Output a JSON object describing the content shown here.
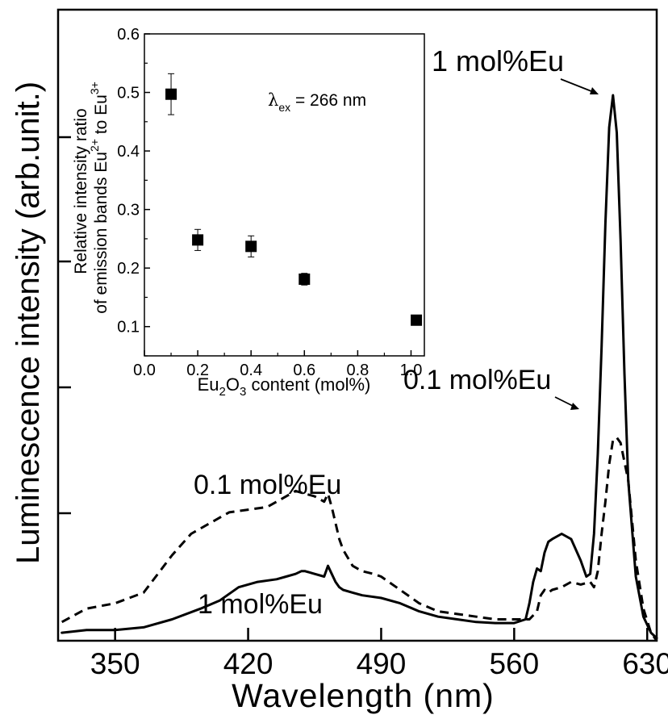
{
  "chart_data": [
    {
      "type": "line",
      "xlabel": "Wavelength (nm)",
      "ylabel": "Luminescence intensity (arb.unit.)",
      "xlim": [
        320,
        635
      ],
      "ylim": [
        0,
        1.18
      ],
      "xticks": [
        "350",
        "420",
        "490",
        "560",
        "630"
      ],
      "grid": false,
      "series": [
        {
          "name": "0.1 mol%Eu",
          "style": "dashed",
          "x": [
            322,
            335,
            350,
            365,
            380,
            390,
            400,
            410,
            420,
            430,
            440,
            445,
            450,
            455,
            460,
            462,
            464,
            466,
            468,
            470,
            475,
            480,
            486,
            490,
            500,
            510,
            520,
            530,
            540,
            550,
            560,
            568,
            572,
            574,
            576,
            578,
            580,
            585,
            590,
            595,
            600,
            602,
            604,
            606,
            608,
            610,
            612,
            614,
            616,
            620,
            624,
            628,
            632,
            635
          ],
          "y": [
            0.035,
            0.06,
            0.07,
            0.09,
            0.16,
            0.2,
            0.22,
            0.24,
            0.245,
            0.25,
            0.27,
            0.28,
            0.275,
            0.27,
            0.26,
            0.275,
            0.25,
            0.22,
            0.19,
            0.17,
            0.14,
            0.13,
            0.125,
            0.12,
            0.095,
            0.07,
            0.055,
            0.05,
            0.045,
            0.04,
            0.04,
            0.04,
            0.055,
            0.085,
            0.095,
            0.09,
            0.095,
            0.1,
            0.11,
            0.105,
            0.11,
            0.1,
            0.13,
            0.2,
            0.26,
            0.33,
            0.375,
            0.38,
            0.37,
            0.3,
            0.15,
            0.06,
            0.015,
            0.0
          ]
        },
        {
          "name": "1 mol%Eu",
          "style": "solid",
          "x": [
            322,
            335,
            350,
            365,
            380,
            395,
            405,
            415,
            425,
            435,
            440,
            445,
            448,
            450,
            455,
            460,
            462,
            464,
            466,
            468,
            470,
            475,
            480,
            490,
            500,
            510,
            520,
            530,
            540,
            550,
            560,
            566,
            568,
            570,
            572,
            574,
            576,
            578,
            580,
            585,
            590,
            595,
            598,
            600,
            602,
            604,
            606,
            608,
            610,
            612,
            614,
            616,
            618,
            620,
            624,
            628,
            632,
            635
          ],
          "y": [
            0.015,
            0.02,
            0.02,
            0.025,
            0.04,
            0.06,
            0.075,
            0.1,
            0.11,
            0.115,
            0.12,
            0.125,
            0.13,
            0.13,
            0.125,
            0.12,
            0.14,
            0.125,
            0.11,
            0.1,
            0.095,
            0.09,
            0.085,
            0.08,
            0.07,
            0.055,
            0.045,
            0.04,
            0.035,
            0.033,
            0.033,
            0.04,
            0.07,
            0.11,
            0.135,
            0.13,
            0.165,
            0.185,
            0.19,
            0.2,
            0.19,
            0.15,
            0.12,
            0.125,
            0.2,
            0.35,
            0.55,
            0.78,
            0.96,
            1.02,
            0.95,
            0.75,
            0.5,
            0.3,
            0.12,
            0.045,
            0.015,
            0.005
          ]
        }
      ],
      "annotations": [
        "1 mol%Eu",
        "0.1 mol%Eu",
        "0.1 mol%Eu",
        "1 mol%Eu"
      ]
    },
    {
      "type": "scatter",
      "xlabel_parts": [
        "Eu",
        "2",
        "O",
        "3",
        " content (mol%)"
      ],
      "ylabel_line1": "Relative intensity ratio",
      "ylabel_line2_parts": [
        "of emission bands Eu",
        "2+",
        " to Eu",
        "3+"
      ],
      "xlim": [
        0.0,
        1.05
      ],
      "ylim": [
        0.05,
        0.6
      ],
      "xticks": [
        "0.0",
        "0.2",
        "0.4",
        "0.6",
        "0.8",
        "1.0"
      ],
      "yticks": [
        "0.1",
        "0.2",
        "0.3",
        "0.4",
        "0.5",
        "0.6"
      ],
      "grid": false,
      "annotation_parts": [
        "λ",
        "ex",
        " = 266 nm"
      ],
      "points": [
        {
          "x": 0.1,
          "y": 0.497,
          "err": 0.035
        },
        {
          "x": 0.2,
          "y": 0.248,
          "err": 0.018
        },
        {
          "x": 0.4,
          "y": 0.237,
          "err": 0.018
        },
        {
          "x": 0.6,
          "y": 0.181,
          "err": 0.01
        },
        {
          "x": 1.02,
          "y": 0.111,
          "err": 0
        }
      ]
    }
  ]
}
